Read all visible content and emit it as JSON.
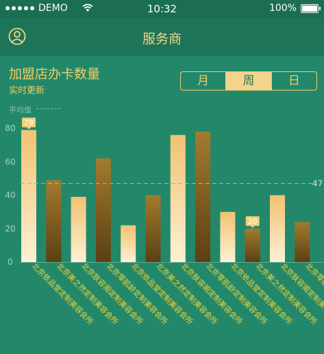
{
  "status_bar": {
    "carrier": "DEMO",
    "time": "10:32",
    "battery": "100%"
  },
  "nav": {
    "title": "服务商"
  },
  "header": {
    "title": "加盟店办卡数量",
    "subtitle": "实时更新"
  },
  "segments": [
    {
      "label": "月",
      "active": false
    },
    {
      "label": "周",
      "active": true
    },
    {
      "label": "日",
      "active": false
    }
  ],
  "average": {
    "label": "平均值",
    "value": 47
  },
  "colors": {
    "light_bar_top": "#f1c271",
    "light_bar_bottom": "#fdf0d5",
    "dark_bar_top": "#a37b2e",
    "dark_bar_bottom": "#5b4013",
    "label_text": "#f2d33a",
    "background": "#23886a"
  },
  "chart_data": {
    "type": "bar",
    "categories": [
      "北京依品堂定制美容会所",
      "北京美之然定制美容会所",
      "北京肤容阁定制美容会所",
      "北京零肌龄定制美容会所",
      "北京依品堂定制美容会所",
      "北京美之然定制美容会所",
      "北京肤容阁定制美容会所",
      "北京零肌龄定制美容会所",
      "北京依品堂定制美容会所",
      "北京美之然定制美容会所",
      "北京肤容阁定制美容会所",
      "北京零肌龄定制美容会所"
    ],
    "values": [
      79,
      49,
      39,
      62,
      22,
      40,
      76,
      78,
      30,
      20,
      40,
      24
    ],
    "ylim": [
      0,
      80
    ],
    "yticks": [
      "0",
      "20",
      "40",
      "60",
      "80"
    ],
    "max_label": "79",
    "min_label": "20",
    "average_line": 47,
    "average_label": "47",
    "grid": false
  }
}
